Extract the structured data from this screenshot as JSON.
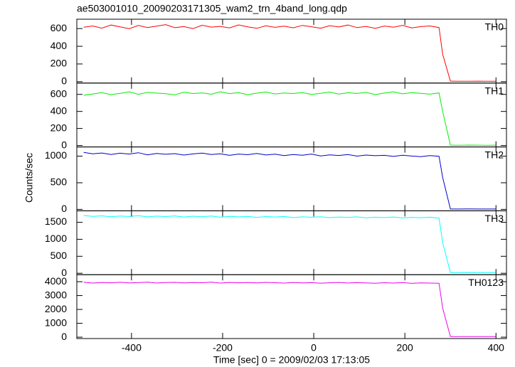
{
  "title": "ae503001010_20090203171305_wam2_trn_4band_long.qdp",
  "x_label": "Time [sec] 0 = 2009/02/03 17:13:05",
  "y_label": "Counts/sec",
  "chart_data": [
    {
      "type": "line",
      "x": [
        -505,
        -485,
        -465,
        -445,
        -425,
        -405,
        -385,
        -365,
        -345,
        -325,
        -305,
        -285,
        -265,
        -245,
        -225,
        -205,
        -185,
        -165,
        -145,
        -125,
        -105,
        -85,
        -65,
        -45,
        -25,
        -5,
        15,
        35,
        55,
        75,
        95,
        115,
        135,
        155,
        175,
        195,
        215,
        235,
        255,
        275,
        283,
        300,
        320,
        340,
        360,
        380,
        400
      ],
      "series": [
        {
          "name": "TH0",
          "color": "#ff0000",
          "values": [
            615,
            630,
            605,
            640,
            620,
            598,
            635,
            612,
            628,
            645,
            610,
            622,
            600,
            638,
            617,
            625,
            608,
            642,
            619,
            603,
            631,
            614,
            627,
            609,
            636,
            621,
            604,
            633,
            618,
            640,
            611,
            625,
            602,
            629,
            616,
            637,
            608,
            622,
            630,
            612,
            310,
            6,
            5,
            4,
            6,
            5,
            4
          ]
        }
      ],
      "ylim": [
        -16,
        706
      ],
      "yticks": [
        0,
        200,
        400,
        600
      ]
    },
    {
      "type": "line",
      "x": [
        -505,
        -485,
        -465,
        -445,
        -425,
        -405,
        -385,
        -365,
        -345,
        -325,
        -305,
        -285,
        -265,
        -245,
        -225,
        -205,
        -185,
        -165,
        -145,
        -125,
        -105,
        -85,
        -65,
        -45,
        -25,
        -5,
        15,
        35,
        55,
        75,
        95,
        115,
        135,
        155,
        175,
        195,
        215,
        235,
        255,
        275,
        283,
        300,
        320,
        340,
        360,
        380,
        400
      ],
      "series": [
        {
          "name": "TH1",
          "color": "#00ee00",
          "values": [
            590,
            605,
            620,
            598,
            612,
            630,
            601,
            624,
            615,
            608,
            595,
            626,
            610,
            618,
            602,
            631,
            609,
            620,
            597,
            614,
            628,
            605,
            617,
            610,
            622,
            600,
            613,
            627,
            604,
            619,
            611,
            624,
            598,
            615,
            630,
            607,
            621,
            612,
            603,
            618,
            400,
            4,
            3,
            5,
            4,
            3,
            4
          ]
        }
      ],
      "ylim": [
        -17,
        733
      ],
      "yticks": [
        0,
        200,
        400,
        600
      ]
    },
    {
      "type": "line",
      "x": [
        -505,
        -485,
        -465,
        -445,
        -425,
        -405,
        -385,
        -365,
        -345,
        -325,
        -305,
        -285,
        -265,
        -245,
        -225,
        -205,
        -185,
        -165,
        -145,
        -125,
        -105,
        -85,
        -65,
        -45,
        -25,
        -5,
        15,
        35,
        55,
        75,
        95,
        115,
        135,
        155,
        175,
        195,
        215,
        235,
        255,
        275,
        283,
        300,
        320,
        340,
        360,
        380,
        400
      ],
      "series": [
        {
          "name": "TH2",
          "color": "#0000cc",
          "values": [
            1070,
            1045,
            1060,
            1030,
            1055,
            1040,
            1065,
            1025,
            1050,
            1035,
            1048,
            1020,
            1042,
            1058,
            1030,
            1045,
            1015,
            1040,
            1028,
            1050,
            1022,
            1038,
            1010,
            1032,
            1018,
            1040,
            1005,
            1025,
            1012,
            1030,
            1000,
            1020,
            1008,
            1015,
            995,
            1018,
            1002,
            990,
            1010,
            998,
            600,
            7,
            6,
            8,
            7,
            6,
            7
          ]
        }
      ],
      "ylim": [
        -27,
        1173
      ],
      "yticks": [
        0,
        500,
        1000
      ]
    },
    {
      "type": "line",
      "x": [
        -505,
        -485,
        -465,
        -445,
        -425,
        -405,
        -385,
        -365,
        -345,
        -325,
        -305,
        -285,
        -265,
        -245,
        -225,
        -205,
        -185,
        -165,
        -145,
        -125,
        -105,
        -85,
        -65,
        -45,
        -25,
        -5,
        15,
        35,
        55,
        75,
        95,
        115,
        135,
        155,
        175,
        195,
        215,
        235,
        255,
        275,
        283,
        300,
        320,
        340,
        360,
        380,
        400
      ],
      "series": [
        {
          "name": "TH3",
          "color": "#00ffff",
          "values": [
            1700,
            1675,
            1690,
            1665,
            1685,
            1670,
            1695,
            1660,
            1680,
            1668,
            1688,
            1655,
            1678,
            1662,
            1683,
            1650,
            1672,
            1660,
            1675,
            1645,
            1668,
            1655,
            1670,
            1640,
            1660,
            1650,
            1665,
            1638,
            1655,
            1645,
            1660,
            1632,
            1650,
            1640,
            1655,
            1628,
            1645,
            1635,
            1650,
            1625,
            900,
            20,
            18,
            22,
            19,
            21,
            20
          ]
        }
      ],
      "ylim": [
        -42,
        1838
      ],
      "yticks": [
        0,
        500,
        1000,
        1500
      ]
    },
    {
      "type": "line",
      "x": [
        -505,
        -485,
        -465,
        -445,
        -425,
        -405,
        -385,
        -365,
        -345,
        -325,
        -305,
        -285,
        -265,
        -245,
        -225,
        -205,
        -185,
        -165,
        -145,
        -125,
        -105,
        -85,
        -65,
        -45,
        -25,
        -5,
        15,
        35,
        55,
        75,
        95,
        115,
        135,
        155,
        175,
        195,
        215,
        235,
        255,
        275,
        283,
        300,
        320,
        340,
        360,
        380,
        400
      ],
      "series": [
        {
          "name": "TH0123",
          "color": "#ee00ee",
          "values": [
            3960,
            3900,
            3940,
            3920,
            3955,
            3910,
            3930,
            3965,
            3905,
            3935,
            3950,
            3915,
            3940,
            3925,
            3960,
            3900,
            3945,
            3920,
            3935,
            3910,
            3950,
            3925,
            3900,
            3940,
            3915,
            3930,
            3895,
            3920,
            3945,
            3905,
            3930,
            3910,
            3890,
            3925,
            3900,
            3935,
            3880,
            3915,
            3900,
            3890,
            2100,
            40,
            38,
            42,
            39,
            41,
            40
          ]
        }
      ],
      "ylim": [
        -100,
        4506
      ],
      "yticks": [
        0,
        1000,
        2000,
        3000,
        4000
      ],
      "xlim": [
        -520,
        423
      ],
      "xticks": [
        -400,
        -200,
        0,
        200,
        400
      ]
    }
  ]
}
